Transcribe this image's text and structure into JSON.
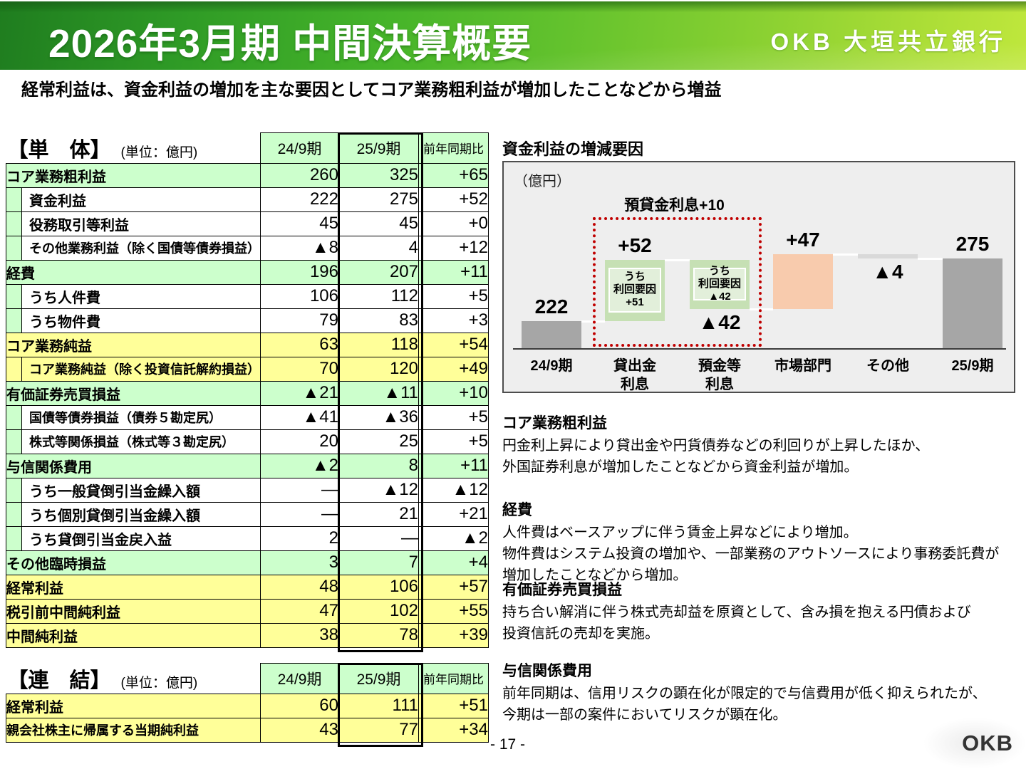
{
  "header": {
    "title": "2026年3月期 中間決算概要",
    "logo": "OKB 大垣共立銀行"
  },
  "subtitle": "経常利益は、資金利益の増加を主な要因としてコア業務粗利益が増加したことなどから増益",
  "colors": {
    "green_row": "#ccffcc",
    "yellow_row": "#ffff99",
    "bar_gray": "#a6a6a6",
    "bar_green": "#c6e0b4",
    "bar_green_inner": "#e2efda",
    "bar_salmon": "#f8cbad",
    "bar_lightgray": "#d9d9d9",
    "chart_bg": "#eeeeee",
    "red_dotted": "#c00000",
    "banner_green_dark": "#1f7d1f",
    "banner_green_light": "#bfe73c"
  },
  "tables": {
    "standalone": {
      "title": "【単　体】",
      "unit": "(単位：億円)",
      "columns": [
        "24/9期",
        "25/9期",
        "前年同期比"
      ],
      "rows": [
        {
          "label": "コア業務粗利益",
          "style": "green",
          "values": [
            "260",
            "325",
            "+65"
          ]
        },
        {
          "label": "資金利益",
          "style": "sub",
          "strip": "green",
          "values": [
            "222",
            "275",
            "+52"
          ]
        },
        {
          "label": "役務取引等利益",
          "style": "sub",
          "strip": "green",
          "values": [
            "45",
            "45",
            "+0"
          ]
        },
        {
          "label": "その他業務利益（除く国債等債券損益）",
          "style": "sub",
          "strip": "green",
          "values": [
            "▲8",
            "4",
            "+12"
          ]
        },
        {
          "label": "経費",
          "style": "green",
          "values": [
            "196",
            "207",
            "+11"
          ]
        },
        {
          "label": "うち人件費",
          "style": "sub",
          "strip": "green",
          "values": [
            "106",
            "112",
            "+5"
          ]
        },
        {
          "label": "うち物件費",
          "style": "sub",
          "strip": "green",
          "values": [
            "79",
            "83",
            "+3"
          ]
        },
        {
          "label": "コア業務純益",
          "style": "yellow",
          "values": [
            "63",
            "118",
            "+54"
          ]
        },
        {
          "label": "コア業務純益（除く投資信託解約損益）",
          "style": "sub-yellow",
          "strip": "yellow",
          "values": [
            "70",
            "120",
            "+49"
          ]
        },
        {
          "label": "有価証券売買損益",
          "style": "green",
          "values": [
            "▲21",
            "▲11",
            "+10"
          ]
        },
        {
          "label": "国債等債券損益（債券５勘定尻）",
          "style": "sub",
          "strip": "green",
          "values": [
            "▲41",
            "▲36",
            "+5"
          ]
        },
        {
          "label": "株式等関係損益（株式等３勘定尻）",
          "style": "sub",
          "strip": "green",
          "values": [
            "20",
            "25",
            "+5"
          ]
        },
        {
          "label": "与信関係費用",
          "style": "green",
          "values": [
            "▲2",
            "8",
            "+11"
          ]
        },
        {
          "label": "うち一般貸倒引当金繰入額",
          "style": "sub",
          "strip": "green",
          "values": [
            "—",
            "▲12",
            "▲12"
          ]
        },
        {
          "label": "うち個別貸倒引当金繰入額",
          "style": "sub",
          "strip": "green",
          "values": [
            "—",
            "21",
            "+21"
          ]
        },
        {
          "label": "うち貸倒引当金戻入益",
          "style": "sub",
          "strip": "green",
          "values": [
            "2",
            "—",
            "▲2"
          ]
        },
        {
          "label": "その他臨時損益",
          "style": "green",
          "values": [
            "3",
            "7",
            "+4"
          ]
        },
        {
          "label": "経常利益",
          "style": "yellow",
          "values": [
            "48",
            "106",
            "+57"
          ]
        },
        {
          "label": "税引前中間純利益",
          "style": "yellow",
          "values": [
            "47",
            "102",
            "+55"
          ]
        },
        {
          "label": "中間純利益",
          "style": "yellow",
          "values": [
            "38",
            "78",
            "+39"
          ]
        }
      ]
    },
    "consolidated": {
      "title": "【連　結】",
      "unit": "(単位：億円)",
      "columns": [
        "24/9期",
        "25/9期",
        "前年同期比"
      ],
      "rows": [
        {
          "label": "経常利益",
          "style": "yellow",
          "values": [
            "60",
            "111",
            "+51"
          ]
        },
        {
          "label": "親会社株主に帰属する当期純利益",
          "style": "yellow",
          "values": [
            "43",
            "77",
            "+34"
          ]
        }
      ]
    }
  },
  "chart_data": {
    "type": "waterfall",
    "title": "資金利益の増減要因",
    "unit_label": "（億円）",
    "annotation": {
      "text": "預貸金利息+10"
    },
    "start_value": 222,
    "end_value": 275,
    "bars": [
      {
        "category": "24/9期",
        "kind": "total",
        "value": 222,
        "label": "222",
        "label_pos": "above",
        "color": "#a6a6a6"
      },
      {
        "category": "貸出金\n利息",
        "kind": "delta",
        "value": 52,
        "label": "+52",
        "label_pos": "above",
        "color": "#c6e0b4",
        "sub_label": "うち\n利回要因\n+51"
      },
      {
        "category": "預金等\n利息",
        "kind": "delta",
        "value": -42,
        "label": "▲42",
        "label_pos": "below",
        "color": "#c6e0b4",
        "sub_label": "うち\n利回要因\n▲42"
      },
      {
        "category": "市場部門",
        "kind": "delta",
        "value": 47,
        "label": "+47",
        "label_pos": "above",
        "color": "#f8cbad"
      },
      {
        "category": "その他",
        "kind": "delta",
        "value": -4,
        "label": "▲4",
        "label_pos": "below",
        "color": "#d9d9d9"
      },
      {
        "category": "25/9期",
        "kind": "total",
        "value": 275,
        "label": "275",
        "label_pos": "above",
        "color": "#a6a6a6"
      }
    ]
  },
  "commentary": [
    {
      "heading": "コア業務粗利益",
      "lines": [
        "円金利上昇により貸出金や円貨債券などの利回りが上昇したほか、",
        "外国証券利息が増加したことなどから資金利益が増加。"
      ]
    },
    {
      "heading": "経費",
      "lines": [
        "人件費はベースアップに伴う賃金上昇などにより増加。",
        "物件費はシステム投資の増加や、一部業務のアウトソースにより事務委託費が",
        "増加したことなどから増加。"
      ]
    },
    {
      "heading": "有価証券売買損益",
      "lines": [
        "持ち合い解消に伴う株式売却益を原資として、含み損を抱える円債および",
        "投資信託の売却を実施。"
      ]
    },
    {
      "heading": "与信関係費用",
      "lines": [
        "前年同期は、信用リスクの顕在化が限定的で与信費用が低く抑えられたが、",
        "今期は一部の案件においてリスクが顕在化。"
      ]
    }
  ],
  "footer": {
    "page": "- 17 -",
    "watermark": "OKB"
  }
}
